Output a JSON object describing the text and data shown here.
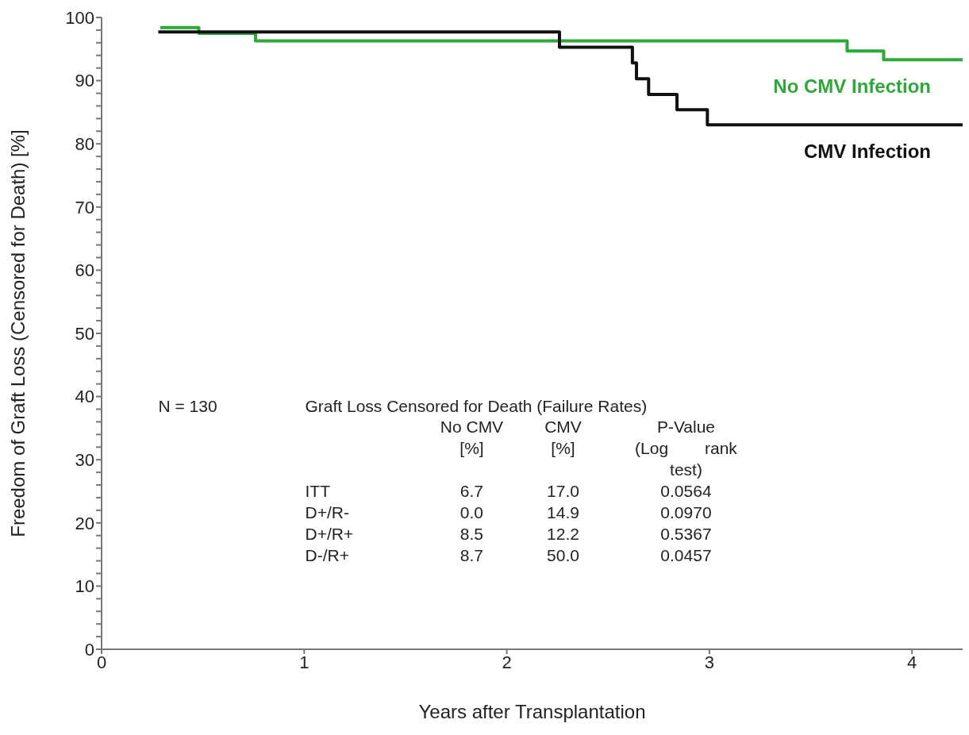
{
  "chart_data": {
    "type": "step",
    "xlabel": "Years after Transplantation",
    "ylabel": "Freedom of Graft Loss (Censored for Death) [%]",
    "series": [
      {
        "name": "No CMV Infection",
        "color": "#2fa83a",
        "x": [
          0.29,
          0.48,
          0.76,
          3.68,
          3.86,
          4.25
        ],
        "values": [
          98.4,
          97.5,
          96.3,
          94.7,
          93.3,
          93.3
        ]
      },
      {
        "name": "CMV Infection",
        "color": "#111111",
        "x": [
          0.28,
          2.26,
          2.62,
          2.64,
          2.7,
          2.84,
          2.99,
          4.25
        ],
        "values": [
          97.7,
          95.3,
          92.8,
          90.3,
          87.8,
          85.4,
          83.0,
          83.0
        ]
      }
    ],
    "xlim": [
      0,
      4.25
    ],
    "xticks": [
      0,
      1,
      2,
      3,
      4
    ],
    "ylim": [
      0,
      100
    ],
    "yticks": [
      0,
      {
        "value": 2,
        "label": null
      },
      {
        "value": 4,
        "label": null
      },
      {
        "value": 6,
        "label": null
      },
      {
        "value": 8,
        "label": null
      },
      10,
      {
        "value": 12,
        "label": null
      },
      {
        "value": 14,
        "label": null
      },
      {
        "value": 16,
        "label": null
      },
      {
        "value": 18,
        "label": null
      },
      20,
      {
        "value": 22,
        "label": null
      },
      {
        "value": 24,
        "label": null
      },
      {
        "value": 26,
        "label": null
      },
      {
        "value": 28,
        "label": null
      },
      30,
      {
        "value": 32,
        "label": null
      },
      {
        "value": 34,
        "label": null
      },
      {
        "value": 36,
        "label": null
      },
      {
        "value": 38,
        "label": null
      },
      40,
      {
        "value": 42,
        "label": null
      },
      {
        "value": 44,
        "label": null
      },
      {
        "value": 46,
        "label": null
      },
      {
        "value": 48,
        "label": null
      },
      50,
      {
        "value": 52,
        "label": null
      },
      {
        "value": 54,
        "label": null
      },
      {
        "value": 56,
        "label": null
      },
      {
        "value": 58,
        "label": null
      },
      60,
      {
        "value": 62,
        "label": null
      },
      {
        "value": 64,
        "label": null
      },
      {
        "value": 66,
        "label": null
      },
      {
        "value": 68,
        "label": null
      },
      70,
      {
        "value": 72,
        "label": null
      },
      {
        "value": 74,
        "label": null
      },
      {
        "value": 76,
        "label": null
      },
      {
        "value": 78,
        "label": null
      },
      80,
      {
        "value": 82,
        "label": null
      },
      {
        "value": 84,
        "label": null
      },
      {
        "value": 86,
        "label": null
      },
      {
        "value": 88,
        "label": null
      },
      90,
      {
        "value": 92,
        "label": null
      },
      {
        "value": 94,
        "label": null
      },
      {
        "value": 96,
        "label": null
      },
      {
        "value": 98,
        "label": null
      },
      100
    ],
    "grid": false,
    "line_style": "solid",
    "annotations": [
      "N = 130",
      "Graft Loss Censored for Death (Failure Rates)",
      "No CMV [%]",
      "CMV [%]",
      "P-Value (Log rank test)",
      "ITT",
      "6.7",
      "17.0",
      "0.0564",
      "D+/R-",
      "0.0",
      "14.9",
      "0.0970",
      "D+/R+",
      "8.5",
      "12.2",
      "0.5367",
      "D-/R+",
      "8.7",
      "50.0",
      "0.0457"
    ]
  }
}
